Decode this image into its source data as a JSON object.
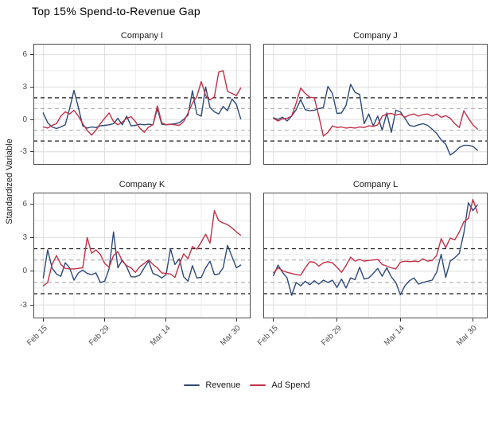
{
  "chart_data": {
    "type": "line",
    "title": "Top 15% Spend-to-Revenue Gap",
    "ylabel": "Standardized Variable",
    "xlabel": "",
    "grid": true,
    "legend_position": "bottom",
    "facet_layout": "2x2",
    "x_unit": "daily observations, day index 0 = Feb 15",
    "n_points": 46,
    "xlim": [
      -2.25,
      47.25
    ],
    "ylim": [
      -4.2,
      7.0
    ],
    "x_ticks": [
      {
        "day": 0,
        "label": "Feb 15"
      },
      {
        "day": 14,
        "label": "Feb 29"
      },
      {
        "day": 28,
        "label": "Mar 14"
      },
      {
        "day": 44,
        "label": "Mar 30"
      }
    ],
    "x_minor_gridline_days": [
      7,
      21,
      36
    ],
    "y_ticks": [
      {
        "value": -3,
        "label": "-3"
      },
      {
        "value": 0,
        "label": "0"
      },
      {
        "value": 3,
        "label": "3"
      },
      {
        "value": 6,
        "label": "6"
      }
    ],
    "y_minor_gridline_values": [
      -1.5,
      1.5,
      4.5
    ],
    "reference_lines": {
      "black_dashed_values": [
        -2,
        2
      ],
      "gray_dashed_values": [
        -1,
        1
      ],
      "black_dashed_color": "#1a1a1a",
      "gray_dashed_color": "#b3b3b3"
    },
    "colors": {
      "grid_major": "#dcdcdc",
      "grid_minor": "#ececec",
      "panel_border": "#4a4a4a",
      "tick_text": "#4d4d4d"
    },
    "legend": [
      {
        "name": "Revenue",
        "color": "#2d4a77"
      },
      {
        "name": "Ad Spend",
        "color": "#c23048"
      }
    ],
    "panels": [
      {
        "title": "Company I",
        "series": [
          {
            "name": "Revenue",
            "values": [
              0.6,
              -0.3,
              -0.7,
              -0.85,
              -0.7,
              -0.5,
              1.0,
              2.7,
              1.1,
              -0.6,
              -0.8,
              -0.7,
              -0.75,
              -0.6,
              -0.55,
              -0.5,
              -0.4,
              0.1,
              -0.5,
              0.3,
              -0.6,
              -0.55,
              -0.45,
              -0.5,
              -0.45,
              -0.5,
              1.0,
              -0.45,
              -0.5,
              -0.45,
              -0.4,
              -0.3,
              0.0,
              0.4,
              2.65,
              0.5,
              0.3,
              3.0,
              1.1,
              0.7,
              0.5,
              1.2,
              0.8,
              1.9,
              1.4,
              0.05
            ]
          },
          {
            "name": "Ad Spend",
            "values": [
              -0.7,
              -0.8,
              -0.55,
              -0.4,
              0.3,
              0.7,
              0.5,
              0.85,
              0.3,
              -0.4,
              -1.0,
              -1.45,
              -1.0,
              -0.4,
              0.1,
              0.6,
              -0.2,
              -0.5,
              -0.25,
              0.1,
              0.25,
              -0.2,
              -0.8,
              -1.2,
              -0.7,
              -0.5,
              1.25,
              -0.3,
              -0.5,
              -0.45,
              -0.5,
              -0.55,
              -0.2,
              0.6,
              1.5,
              2.1,
              3.5,
              2.2,
              1.8,
              2.1,
              4.4,
              4.5,
              2.6,
              2.4,
              2.2,
              2.9
            ]
          }
        ]
      },
      {
        "title": "Company J",
        "series": [
          {
            "name": "Revenue",
            "values": [
              0.15,
              0.0,
              0.2,
              -0.15,
              0.3,
              0.9,
              1.85,
              0.9,
              0.8,
              0.85,
              1.0,
              1.1,
              3.05,
              2.4,
              0.55,
              0.6,
              1.3,
              3.25,
              2.5,
              2.3,
              -0.4,
              0.5,
              -0.6,
              0.3,
              -1.0,
              0.6,
              -1.2,
              0.85,
              0.7,
              0.1,
              -0.55,
              -0.65,
              -0.5,
              -0.4,
              -0.55,
              -0.9,
              -1.3,
              -1.9,
              -2.3,
              -3.3,
              -3.0,
              -2.6,
              -2.4,
              -2.4,
              -2.5,
              -2.85
            ]
          },
          {
            "name": "Ad Spend",
            "values": [
              0.1,
              -0.15,
              0.05,
              0.1,
              0.3,
              1.5,
              2.9,
              2.4,
              2.05,
              2.0,
              0.3,
              -1.55,
              -1.2,
              -0.6,
              -0.75,
              -0.7,
              -0.8,
              -0.75,
              -0.8,
              -0.7,
              -0.75,
              -0.6,
              -0.65,
              -0.5,
              0.3,
              0.5,
              0.55,
              0.4,
              0.5,
              0.2,
              0.4,
              0.5,
              0.3,
              0.45,
              0.5,
              0.3,
              0.5,
              0.2,
              0.35,
              0.1,
              -0.4,
              -0.75,
              0.8,
              0.1,
              -0.5,
              -0.9
            ]
          }
        ]
      },
      {
        "title": "Company K",
        "series": [
          {
            "name": "Revenue",
            "values": [
              -0.6,
              1.9,
              0.3,
              -0.25,
              -0.45,
              0.75,
              0.3,
              -0.8,
              -0.15,
              0.1,
              -0.2,
              -0.3,
              -0.15,
              -1.0,
              -0.9,
              0.2,
              3.5,
              0.3,
              1.0,
              0.4,
              -0.5,
              -0.5,
              -0.35,
              0.3,
              0.9,
              -0.2,
              -0.35,
              -0.6,
              -0.3,
              2.0,
              0.6,
              1.1,
              -0.5,
              -0.9,
              0.5,
              -0.6,
              -0.55,
              0.3,
              0.9,
              -0.3,
              -0.25,
              0.3,
              2.3,
              1.3,
              0.3,
              0.55
            ]
          },
          {
            "name": "Ad Spend",
            "values": [
              -1.3,
              -1.0,
              0.6,
              1.4,
              0.6,
              0.25,
              0.2,
              0.2,
              0.25,
              0.3,
              3.0,
              1.6,
              1.9,
              1.5,
              0.7,
              0.35,
              1.4,
              1.75,
              0.9,
              0.5,
              0.3,
              -0.1,
              0.4,
              0.7,
              1.0,
              0.6,
              0.3,
              -0.15,
              -0.2,
              -0.25,
              -0.55,
              0.6,
              1.55,
              1.1,
              2.2,
              1.95,
              2.6,
              3.3,
              2.5,
              5.4,
              4.5,
              4.3,
              4.15,
              3.85,
              3.5,
              3.2
            ]
          }
        ]
      },
      {
        "title": "Company L",
        "series": [
          {
            "name": "Revenue",
            "values": [
              -0.4,
              0.55,
              -0.1,
              -0.6,
              -2.15,
              -1.0,
              -1.3,
              -0.9,
              -1.2,
              -0.85,
              -1.15,
              -0.8,
              -1.0,
              -0.8,
              -1.45,
              -0.7,
              -1.5,
              -0.6,
              -0.75,
              0.35,
              -0.7,
              -0.6,
              -0.2,
              0.25,
              -0.45,
              0.3,
              -0.5,
              -1.0,
              -2.1,
              -1.3,
              -0.85,
              -0.6,
              -1.15,
              -1.0,
              -0.9,
              -0.8,
              -0.1,
              1.5,
              -0.55,
              0.9,
              1.2,
              1.6,
              3.4,
              6.1,
              5.4,
              5.9
            ]
          },
          {
            "name": "Ad Spend",
            "values": [
              -0.15,
              0.3,
              0.05,
              -0.1,
              -0.2,
              -0.3,
              -0.35,
              0.3,
              0.85,
              0.8,
              0.45,
              0.75,
              0.85,
              0.75,
              0.35,
              -0.1,
              0.5,
              1.25,
              0.9,
              1.05,
              0.9,
              0.95,
              1.0,
              1.05,
              0.6,
              0.45,
              0.3,
              0.2,
              0.8,
              0.9,
              0.85,
              0.9,
              0.85,
              1.1,
              0.9,
              0.95,
              1.4,
              2.9,
              2.1,
              2.95,
              2.8,
              3.5,
              4.4,
              4.7,
              6.4,
              5.2
            ]
          }
        ]
      }
    ]
  }
}
